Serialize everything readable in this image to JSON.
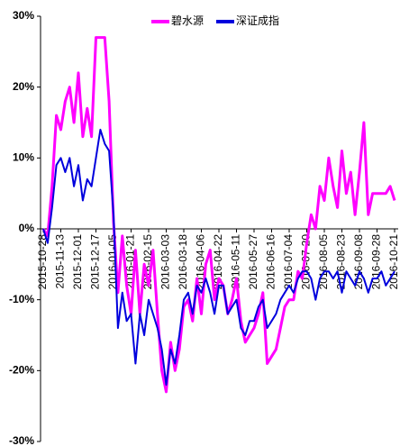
{
  "chart_data": {
    "type": "line",
    "categories": [
      "2015-10-28",
      null,
      null,
      null,
      "2015-11-13",
      null,
      null,
      null,
      "2015-12-01",
      null,
      null,
      null,
      "2015-12-17",
      null,
      null,
      null,
      "2016-01-05",
      null,
      null,
      null,
      "2016-01-21",
      null,
      null,
      null,
      "2016-02-15",
      null,
      null,
      null,
      "2016-03-03",
      null,
      null,
      null,
      "2016-03-18",
      null,
      null,
      null,
      "2016-04-06",
      null,
      null,
      null,
      "2016-04-22",
      null,
      null,
      null,
      "2016-05-11",
      null,
      null,
      null,
      "2016-05-27",
      null,
      null,
      null,
      "2016-06-16",
      null,
      null,
      null,
      "2016-07-04",
      null,
      null,
      null,
      "2016-07-20",
      null,
      null,
      null,
      "2016-08-05",
      null,
      null,
      null,
      "2016-08-23",
      null,
      null,
      null,
      "2016-09-08",
      null,
      null,
      null,
      "2016-09-28",
      null,
      null,
      null,
      "2016-10-21"
    ],
    "series": [
      {
        "name": "碧水源",
        "color": "#ff00ff",
        "values": [
          0,
          -1,
          6,
          16,
          14,
          18,
          20,
          15,
          22,
          13,
          17,
          13,
          27,
          27,
          27,
          18,
          1,
          -9,
          -1,
          -8,
          -12,
          -3,
          -12,
          -5,
          -8,
          -3,
          -12,
          -20,
          -23,
          -16,
          -20,
          -17,
          -11,
          -10,
          -13,
          -7,
          -12,
          -5,
          -3,
          -10,
          -7,
          -8,
          -12,
          -10,
          -7,
          -13,
          -16,
          -15,
          -14,
          -12,
          -9,
          -19,
          -18,
          -17,
          -14,
          -11,
          -10,
          -10,
          -6,
          -7,
          -2,
          2,
          0,
          6,
          4,
          10,
          6,
          3,
          11,
          5,
          8,
          2,
          8,
          15,
          2,
          5,
          5,
          5,
          5,
          6,
          4
        ]
      },
      {
        "name": "深证成指",
        "color": "#0000dd",
        "values": [
          0,
          -2,
          3,
          9,
          10,
          8,
          10,
          6,
          9,
          4,
          7,
          6,
          10,
          14,
          12,
          11,
          2,
          -14,
          -9,
          -13,
          -12,
          -19,
          -12,
          -15,
          -10,
          -12,
          -14,
          -17,
          -22,
          -17,
          -19,
          -15,
          -10,
          -9,
          -12,
          -8,
          -9,
          -7,
          -9,
          -12,
          -8,
          -8,
          -12,
          -11,
          -10,
          -14,
          -15,
          -13,
          -13,
          -11,
          -10,
          -14,
          -13,
          -12,
          -10,
          -9,
          -8,
          -9,
          -7,
          -6,
          -6,
          -7,
          -10,
          -7,
          -6,
          -6,
          -7,
          -6,
          -9,
          -6,
          -7,
          -8,
          -6,
          -7,
          -9,
          -7,
          -7,
          -6,
          -8,
          -7,
          -6
        ]
      }
    ],
    "ylim": [
      -30,
      30
    ],
    "yticks": [
      {
        "value": -30,
        "label": "-30%"
      },
      {
        "value": -20,
        "label": "-20%"
      },
      {
        "value": -10,
        "label": "-10%"
      },
      {
        "value": 0,
        "label": "0%"
      },
      {
        "value": 10,
        "label": "10%"
      },
      {
        "value": 20,
        "label": "20%"
      },
      {
        "value": 30,
        "label": "30%"
      }
    ],
    "grid": false
  }
}
